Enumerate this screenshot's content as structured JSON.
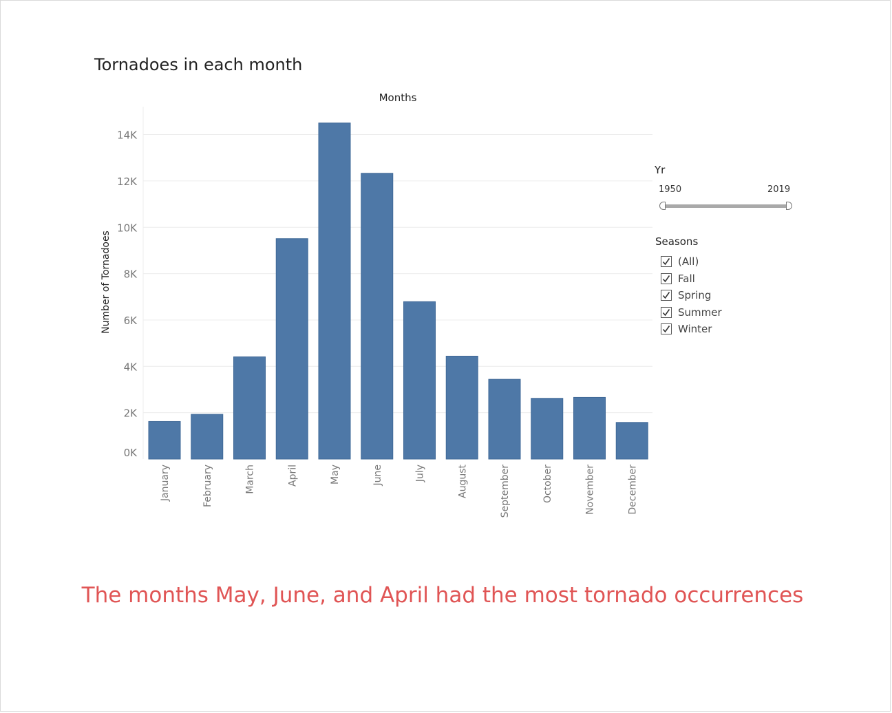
{
  "title": "Tornadoes in each month",
  "caption": "The months May, June, and April had the most tornado occurrences",
  "colors": {
    "bar": "#4e78a7",
    "caption": "#e05555"
  },
  "filters": {
    "year": {
      "label": "Yr",
      "min": "1950",
      "max": "2019"
    },
    "seasons": {
      "label": "Seasons",
      "items": [
        {
          "label": "(All)",
          "checked": true
        },
        {
          "label": "Fall",
          "checked": true
        },
        {
          "label": "Spring",
          "checked": true
        },
        {
          "label": "Summer",
          "checked": true
        },
        {
          "label": "Winter",
          "checked": true
        }
      ]
    }
  },
  "chart_data": {
    "type": "bar",
    "title": "Tornadoes in each month",
    "xlabel": "Months",
    "ylabel": "Number of Tornadoes",
    "categories": [
      "January",
      "February",
      "March",
      "April",
      "May",
      "June",
      "July",
      "August",
      "September",
      "October",
      "November",
      "December"
    ],
    "values": [
      1620,
      1930,
      4410,
      9510,
      14500,
      12330,
      6790,
      4440,
      3440,
      2620,
      2660,
      1580
    ],
    "ylim": [
      0,
      15000
    ],
    "yticks": [
      0,
      2000,
      4000,
      6000,
      8000,
      10000,
      12000,
      14000
    ],
    "ytick_labels": [
      "0K",
      "2K",
      "4K",
      "6K",
      "8K",
      "10K",
      "12K",
      "14K"
    ],
    "grid": true,
    "legend": "none"
  }
}
